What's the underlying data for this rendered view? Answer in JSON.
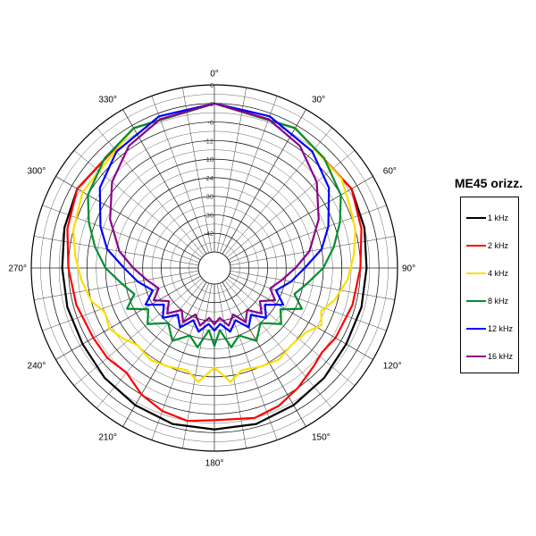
{
  "chart_data": {
    "type": "polar-line",
    "title": "ME45 orizz.",
    "angle_labels": [
      "0°",
      "30°",
      "60°",
      "90°",
      "120°",
      "150°",
      "180°",
      "210°",
      "240°",
      "270°",
      "300°",
      "330°"
    ],
    "radial_tick_labels": [
      "6",
      "0",
      "-6",
      "-12",
      "-18",
      "-24",
      "-30",
      "-36",
      "-42"
    ],
    "series": [
      {
        "name": "1 kHz",
        "color": "#000000",
        "angles": [
          0,
          30,
          60,
          75,
          90,
          105,
          120,
          135,
          150,
          165,
          180,
          195,
          210,
          225,
          240,
          255,
          270,
          285,
          300,
          330
        ],
        "values": [
          0,
          -1,
          -2,
          -3,
          -4,
          -4,
          -4,
          -3,
          -2,
          -1,
          -1,
          -1,
          -2,
          -3,
          -4,
          -4,
          -4,
          -3,
          -2,
          -1
        ]
      },
      {
        "name": "2 kHz",
        "color": "#ff0000",
        "angles": [
          0,
          30,
          60,
          75,
          90,
          105,
          120,
          128,
          135,
          145,
          155,
          165,
          180,
          190,
          200,
          210,
          220,
          230,
          240,
          255,
          270,
          285,
          300,
          330
        ],
        "values": [
          0,
          -1,
          -2,
          -4,
          -6,
          -7,
          -8,
          -9,
          -8,
          -6,
          -4,
          -3,
          -4,
          -3,
          -4,
          -6,
          -9,
          -8,
          -8,
          -7,
          -6,
          -4,
          -2,
          -1
        ]
      },
      {
        "name": "4 kHz",
        "color": "#ffdd00",
        "angles": [
          0,
          30,
          55,
          65,
          75,
          85,
          95,
          105,
          112,
          118,
          125,
          135,
          145,
          155,
          165,
          172,
          180,
          188,
          195,
          205,
          215,
          225,
          232,
          240,
          248,
          255,
          265,
          275,
          285,
          300,
          330
        ],
        "values": [
          0,
          -1,
          -3,
          -5,
          -6,
          -8,
          -10,
          -13,
          -16,
          -14,
          -17,
          -18,
          -17,
          -18,
          -19,
          -16,
          -21,
          -16,
          -19,
          -18,
          -17,
          -18,
          -16,
          -14,
          -15,
          -12,
          -10,
          -8,
          -6,
          -4,
          -1
        ]
      },
      {
        "name": "8 kHz",
        "color": "#008f2e",
        "angles": [
          0,
          30,
          45,
          60,
          70,
          80,
          90,
          100,
          108,
          115,
          122,
          130,
          140,
          150,
          160,
          168,
          175,
          180,
          185,
          192,
          200,
          210,
          220,
          230,
          238,
          245,
          252,
          260,
          270,
          280,
          290,
          300,
          315,
          330
        ],
        "values": [
          0,
          -1,
          -3,
          -6,
          -10,
          -14,
          -18,
          -23,
          -26,
          -22,
          -28,
          -25,
          -30,
          -26,
          -30,
          -27,
          -33,
          -28,
          -33,
          -27,
          -30,
          -26,
          -30,
          -25,
          -28,
          -22,
          -26,
          -23,
          -18,
          -14,
          -10,
          -6,
          -3,
          -1
        ]
      },
      {
        "name": "12 kHz",
        "color": "#0000ff",
        "angles": [
          0,
          20,
          40,
          55,
          70,
          80,
          90,
          100,
          110,
          118,
          126,
          134,
          142,
          150,
          158,
          166,
          174,
          180,
          186,
          194,
          202,
          210,
          218,
          226,
          234,
          242,
          250,
          260,
          270,
          280,
          290,
          305,
          320,
          340
        ],
        "values": [
          0,
          -1,
          -4,
          -8,
          -14,
          -18,
          -24,
          -28,
          -32,
          -28,
          -33,
          -30,
          -34,
          -31,
          -35,
          -32,
          -35,
          -33,
          -35,
          -32,
          -35,
          -31,
          -34,
          -30,
          -33,
          -28,
          -32,
          -28,
          -24,
          -18,
          -14,
          -8,
          -4,
          -1
        ]
      },
      {
        "name": "16 kHz",
        "color": "#8b008b",
        "angles": [
          0,
          20,
          35,
          50,
          65,
          80,
          90,
          100,
          110,
          118,
          126,
          134,
          142,
          150,
          158,
          166,
          174,
          180,
          186,
          194,
          202,
          210,
          218,
          226,
          234,
          242,
          250,
          260,
          270,
          280,
          295,
          310,
          325,
          340
        ],
        "values": [
          0,
          -2,
          -5,
          -10,
          -16,
          -22,
          -27,
          -31,
          -34,
          -31,
          -35,
          -32,
          -36,
          -33,
          -37,
          -34,
          -37,
          -35,
          -37,
          -34,
          -37,
          -33,
          -36,
          -32,
          -35,
          -31,
          -34,
          -31,
          -27,
          -22,
          -16,
          -10,
          -5,
          -2
        ]
      }
    ],
    "r_range": [
      -48,
      6
    ],
    "grid": true,
    "legend_position": "right"
  }
}
